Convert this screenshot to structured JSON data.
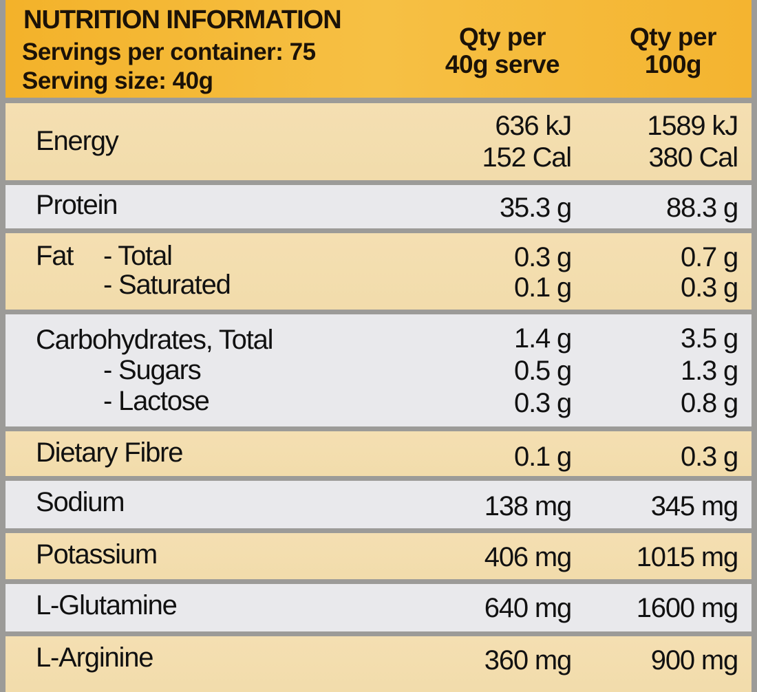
{
  "header": {
    "title": "NUTRITION INFORMATION",
    "servings": "Servings per container: 75",
    "serving_size": "Serving size: 40g",
    "col1": [
      "Qty per",
      "40g serve"
    ],
    "col2": [
      "Qty per",
      "100g"
    ]
  },
  "rows": [
    {
      "label": "Energy",
      "per_serve": [
        "636 kJ",
        "152 Cal"
      ],
      "per_100g": [
        "1589 kJ",
        "380 Cal"
      ]
    },
    {
      "label": "Protein",
      "per_serve": [
        "35.3 g"
      ],
      "per_100g": [
        "88.3 g"
      ]
    },
    {
      "label": "Fat",
      "sub": [
        "- Total",
        "- Saturated"
      ],
      "per_serve": [
        "0.3 g",
        "0.1 g"
      ],
      "per_100g": [
        "0.7 g",
        "0.3 g"
      ]
    },
    {
      "label": "Carbohydrates, Total",
      "sub": [
        "- Sugars",
        "- Lactose"
      ],
      "per_serve": [
        "1.4 g",
        "0.5 g",
        "0.3 g"
      ],
      "per_100g": [
        "3.5 g",
        "1.3 g",
        "0.8 g"
      ]
    },
    {
      "label": "Dietary Fibre",
      "per_serve": [
        "0.1 g"
      ],
      "per_100g": [
        "0.3 g"
      ]
    },
    {
      "label": "Sodium",
      "per_serve": [
        "138 mg"
      ],
      "per_100g": [
        "345 mg"
      ]
    },
    {
      "label": "Potassium",
      "per_serve": [
        "406 mg"
      ],
      "per_100g": [
        "1015 mg"
      ]
    },
    {
      "label": "L-Glutamine",
      "per_serve": [
        "640 mg"
      ],
      "per_100g": [
        "1600 mg"
      ]
    },
    {
      "label": "L-Arginine",
      "per_serve": [
        "360 mg"
      ],
      "per_100g": [
        "900 mg"
      ]
    }
  ],
  "colors": {
    "header": "#f4b430",
    "row_beige": "#f3ddae",
    "row_grey": "#e9e9ec",
    "divider": "#9c9b98"
  }
}
